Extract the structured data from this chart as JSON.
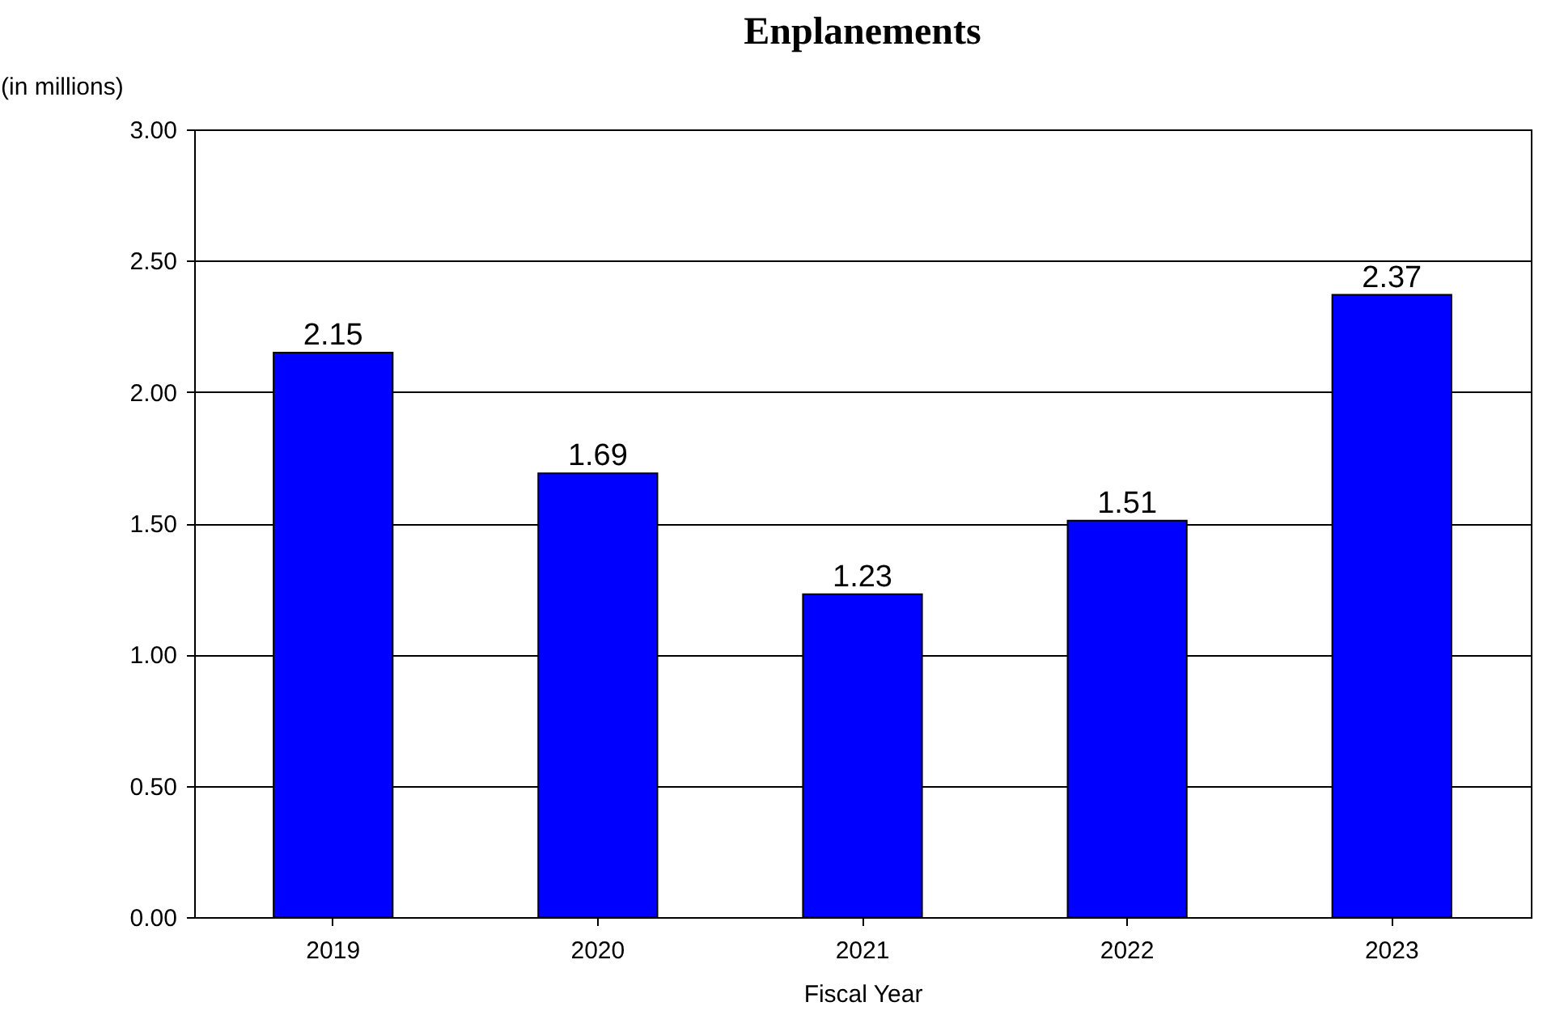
{
  "chart_data": {
    "type": "bar",
    "title": "Enplanements",
    "xlabel": "Fiscal Year",
    "ylabel": "(in millions)",
    "categories": [
      "2019",
      "2020",
      "2021",
      "2022",
      "2023"
    ],
    "values": [
      2.15,
      1.69,
      1.23,
      1.51,
      2.37
    ],
    "color": "#0000ff",
    "ylim": [
      0,
      3
    ],
    "yticks": [
      {
        "value": 0,
        "label": "0.00"
      },
      {
        "value": 0.5,
        "label": "0.50"
      },
      {
        "value": 1,
        "label": "1.00"
      },
      {
        "value": 1.5,
        "label": "1.50"
      },
      {
        "value": 2,
        "label": "2.00"
      },
      {
        "value": 2.5,
        "label": "2.50"
      },
      {
        "value": 3,
        "label": "3.00"
      }
    ],
    "grid": "y",
    "data_labels": true
  }
}
